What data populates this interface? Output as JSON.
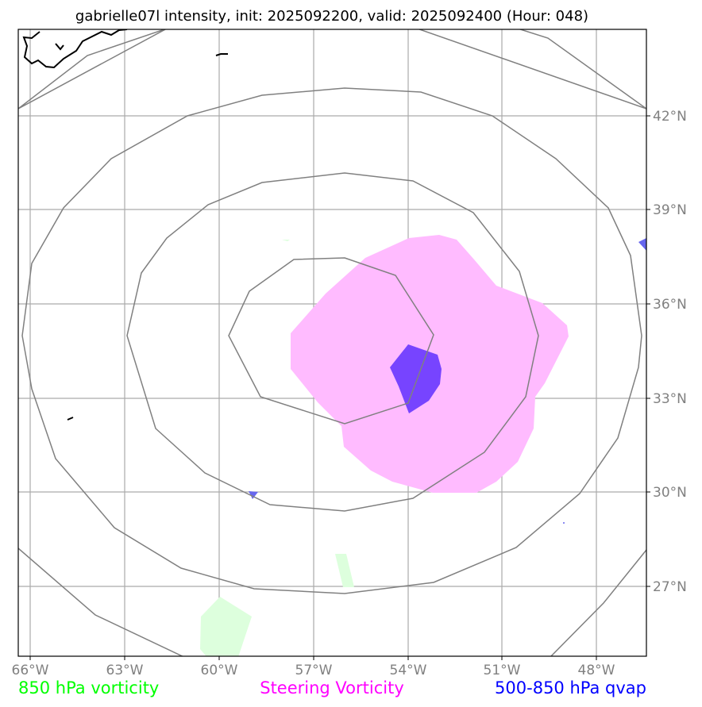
{
  "title": "gabrielle07l intensity, init: 2025092200, valid: 2025092400 (Hour: 048)",
  "axes": {
    "lon_labels": [
      "66°W",
      "63°W",
      "60°W",
      "57°W",
      "54°W",
      "51°W",
      "48°W"
    ],
    "lat_labels": [
      "42°N",
      "39°N",
      "36°N",
      "33°N",
      "30°N",
      "27°N"
    ],
    "gridline_color": "#aaaaaa",
    "tick_color": "#808080"
  },
  "fields": {
    "steering_vorticity": {
      "color": "#ffbbff"
    },
    "qvap_500_850": {
      "color": "#7744ff",
      "edge_color": "#6666ee"
    },
    "vorticity_850": {
      "color": "#ddffdd"
    },
    "range_rings": {
      "color": "#808080"
    },
    "coastline": {
      "color": "#000000"
    }
  },
  "legend": [
    {
      "label": "850 hPa vorticity",
      "color": "#00ff00"
    },
    {
      "label": "Steering Vorticity",
      "color": "#ff00ff"
    },
    {
      "label": "500-850 hPa qvap",
      "color": "#0000ff"
    }
  ]
}
